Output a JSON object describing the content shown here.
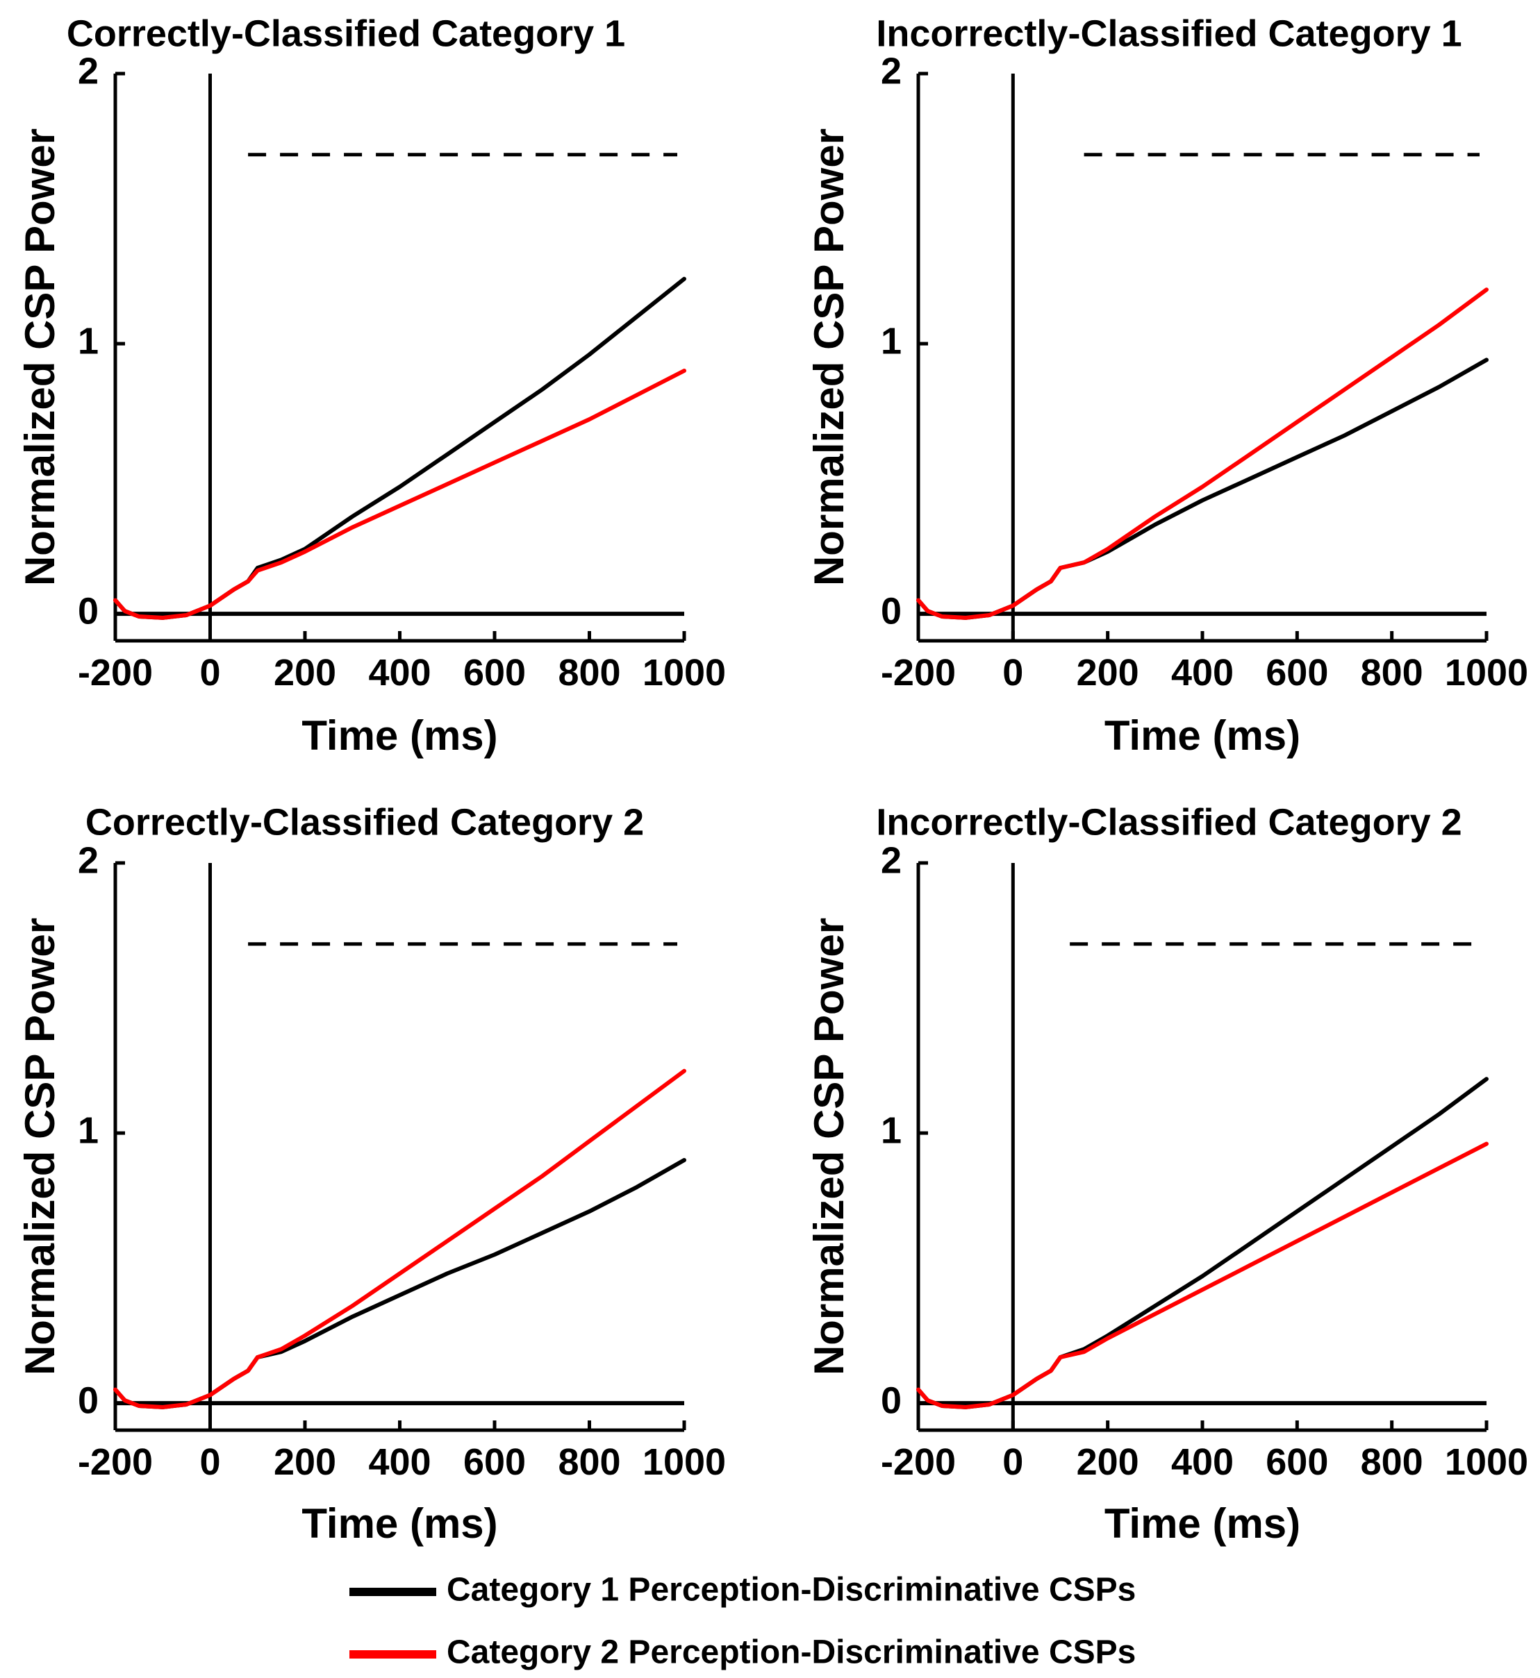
{
  "chart_data": [
    {
      "type": "line",
      "title": "Correctly-Classified Category 1",
      "xlabel": "Time (ms)",
      "ylabel": "Normalized CSP Power",
      "xlim": [
        -200,
        1000
      ],
      "ylim": [
        -0.1,
        2
      ],
      "xticks": [
        "-200",
        "0",
        "200",
        "400",
        "600",
        "800",
        "1000"
      ],
      "yticks": [
        "0",
        "1",
        "2"
      ],
      "vline_x": 0,
      "significance_line": {
        "y": 1.7,
        "x_range": [
          80,
          1000
        ],
        "style": "dashed"
      },
      "series": [
        {
          "name": "Category 1 Perception-Discriminative CSPs",
          "color": "#000000",
          "x": [
            -200,
            -180,
            -150,
            -100,
            -50,
            0,
            50,
            80,
            100,
            150,
            200,
            300,
            400,
            500,
            600,
            700,
            800,
            900,
            1000
          ],
          "y": [
            0.05,
            0.01,
            -0.01,
            -0.015,
            -0.005,
            0.03,
            0.09,
            0.12,
            0.17,
            0.2,
            0.24,
            0.36,
            0.47,
            0.59,
            0.71,
            0.83,
            0.96,
            1.1,
            1.24
          ]
        },
        {
          "name": "Category 2 Perception-Discriminative CSPs",
          "color": "#ff0000",
          "x": [
            -200,
            -180,
            -150,
            -100,
            -50,
            0,
            50,
            80,
            100,
            150,
            200,
            300,
            400,
            500,
            600,
            700,
            800,
            900,
            1000
          ],
          "y": [
            0.05,
            0.01,
            -0.01,
            -0.015,
            -0.005,
            0.03,
            0.09,
            0.12,
            0.16,
            0.19,
            0.23,
            0.32,
            0.4,
            0.48,
            0.56,
            0.64,
            0.72,
            0.81,
            0.9
          ]
        }
      ]
    },
    {
      "type": "line",
      "title": "Incorrectly-Classified Category 1",
      "xlabel": "Time (ms)",
      "ylabel": "Normalized CSP Power",
      "xlim": [
        -200,
        1000
      ],
      "ylim": [
        -0.1,
        2
      ],
      "xticks": [
        "-200",
        "0",
        "200",
        "400",
        "600",
        "800",
        "1000"
      ],
      "yticks": [
        "0",
        "1",
        "2"
      ],
      "vline_x": 0,
      "significance_line": {
        "y": 1.7,
        "x_range": [
          150,
          1000
        ],
        "style": "dashed"
      },
      "series": [
        {
          "name": "Category 1 Perception-Discriminative CSPs",
          "color": "#000000",
          "x": [
            -200,
            -180,
            -150,
            -100,
            -50,
            0,
            50,
            80,
            100,
            150,
            200,
            300,
            400,
            500,
            600,
            700,
            800,
            900,
            1000
          ],
          "y": [
            0.05,
            0.01,
            -0.01,
            -0.015,
            -0.005,
            0.03,
            0.09,
            0.12,
            0.17,
            0.19,
            0.23,
            0.33,
            0.42,
            0.5,
            0.58,
            0.66,
            0.75,
            0.84,
            0.94
          ]
        },
        {
          "name": "Category 2 Perception-Discriminative CSPs",
          "color": "#ff0000",
          "x": [
            -200,
            -180,
            -150,
            -100,
            -50,
            0,
            50,
            80,
            100,
            150,
            200,
            300,
            400,
            500,
            600,
            700,
            800,
            900,
            1000
          ],
          "y": [
            0.05,
            0.01,
            -0.01,
            -0.015,
            -0.005,
            0.03,
            0.09,
            0.12,
            0.17,
            0.19,
            0.24,
            0.36,
            0.47,
            0.59,
            0.71,
            0.83,
            0.95,
            1.07,
            1.2
          ]
        }
      ]
    },
    {
      "type": "line",
      "title": "Correctly-Classified Category 2",
      "xlabel": "Time (ms)",
      "ylabel": "Normalized CSP Power",
      "xlim": [
        -200,
        1000
      ],
      "ylim": [
        -0.1,
        2
      ],
      "xticks": [
        "-200",
        "0",
        "200",
        "400",
        "600",
        "800",
        "1000"
      ],
      "yticks": [
        "0",
        "1",
        "2"
      ],
      "vline_x": 0,
      "significance_line": {
        "y": 1.7,
        "x_range": [
          80,
          1000
        ],
        "style": "dashed"
      },
      "series": [
        {
          "name": "Category 1 Perception-Discriminative CSPs",
          "color": "#000000",
          "x": [
            -200,
            -180,
            -150,
            -100,
            -50,
            0,
            50,
            80,
            100,
            150,
            200,
            300,
            400,
            500,
            600,
            700,
            800,
            900,
            1000
          ],
          "y": [
            0.05,
            0.01,
            -0.01,
            -0.015,
            -0.005,
            0.03,
            0.09,
            0.12,
            0.17,
            0.19,
            0.23,
            0.32,
            0.4,
            0.48,
            0.55,
            0.63,
            0.71,
            0.8,
            0.9
          ]
        },
        {
          "name": "Category 2 Perception-Discriminative CSPs",
          "color": "#ff0000",
          "x": [
            -200,
            -180,
            -150,
            -100,
            -50,
            0,
            50,
            80,
            100,
            150,
            200,
            300,
            400,
            500,
            600,
            700,
            800,
            900,
            1000
          ],
          "y": [
            0.05,
            0.01,
            -0.01,
            -0.015,
            -0.005,
            0.03,
            0.09,
            0.12,
            0.17,
            0.2,
            0.25,
            0.36,
            0.48,
            0.6,
            0.72,
            0.84,
            0.97,
            1.1,
            1.23
          ]
        }
      ]
    },
    {
      "type": "line",
      "title": "Incorrectly-Classified Category 2",
      "xlabel": "Time (ms)",
      "ylabel": "Normalized CSP Power",
      "xlim": [
        -200,
        1000
      ],
      "ylim": [
        -0.1,
        2
      ],
      "xticks": [
        "-200",
        "0",
        "200",
        "400",
        "600",
        "800",
        "1000"
      ],
      "yticks": [
        "0",
        "1",
        "2"
      ],
      "vline_x": 0,
      "significance_line": {
        "y": 1.7,
        "x_range": [
          120,
          1000
        ],
        "style": "dashed"
      },
      "series": [
        {
          "name": "Category 1 Perception-Discriminative CSPs",
          "color": "#000000",
          "x": [
            -200,
            -180,
            -150,
            -100,
            -50,
            0,
            50,
            80,
            100,
            150,
            200,
            300,
            400,
            500,
            600,
            700,
            800,
            900,
            1000
          ],
          "y": [
            0.05,
            0.01,
            -0.01,
            -0.015,
            -0.005,
            0.03,
            0.09,
            0.12,
            0.17,
            0.2,
            0.25,
            0.36,
            0.47,
            0.59,
            0.71,
            0.83,
            0.95,
            1.07,
            1.2
          ]
        },
        {
          "name": "Category 2 Perception-Discriminative CSPs",
          "color": "#ff0000",
          "x": [
            -200,
            -180,
            -150,
            -100,
            -50,
            0,
            50,
            80,
            100,
            150,
            200,
            300,
            400,
            500,
            600,
            700,
            800,
            900,
            1000
          ],
          "y": [
            0.05,
            0.01,
            -0.01,
            -0.015,
            -0.005,
            0.03,
            0.09,
            0.12,
            0.17,
            0.19,
            0.24,
            0.33,
            0.42,
            0.51,
            0.6,
            0.69,
            0.78,
            0.87,
            0.96
          ]
        }
      ]
    }
  ],
  "legend": [
    {
      "label": "Category 1 Perception-Discriminative CSPs",
      "color": "#000000"
    },
    {
      "label": "Category 2 Perception-Discriminative CSPs",
      "color": "#ff0000"
    }
  ]
}
